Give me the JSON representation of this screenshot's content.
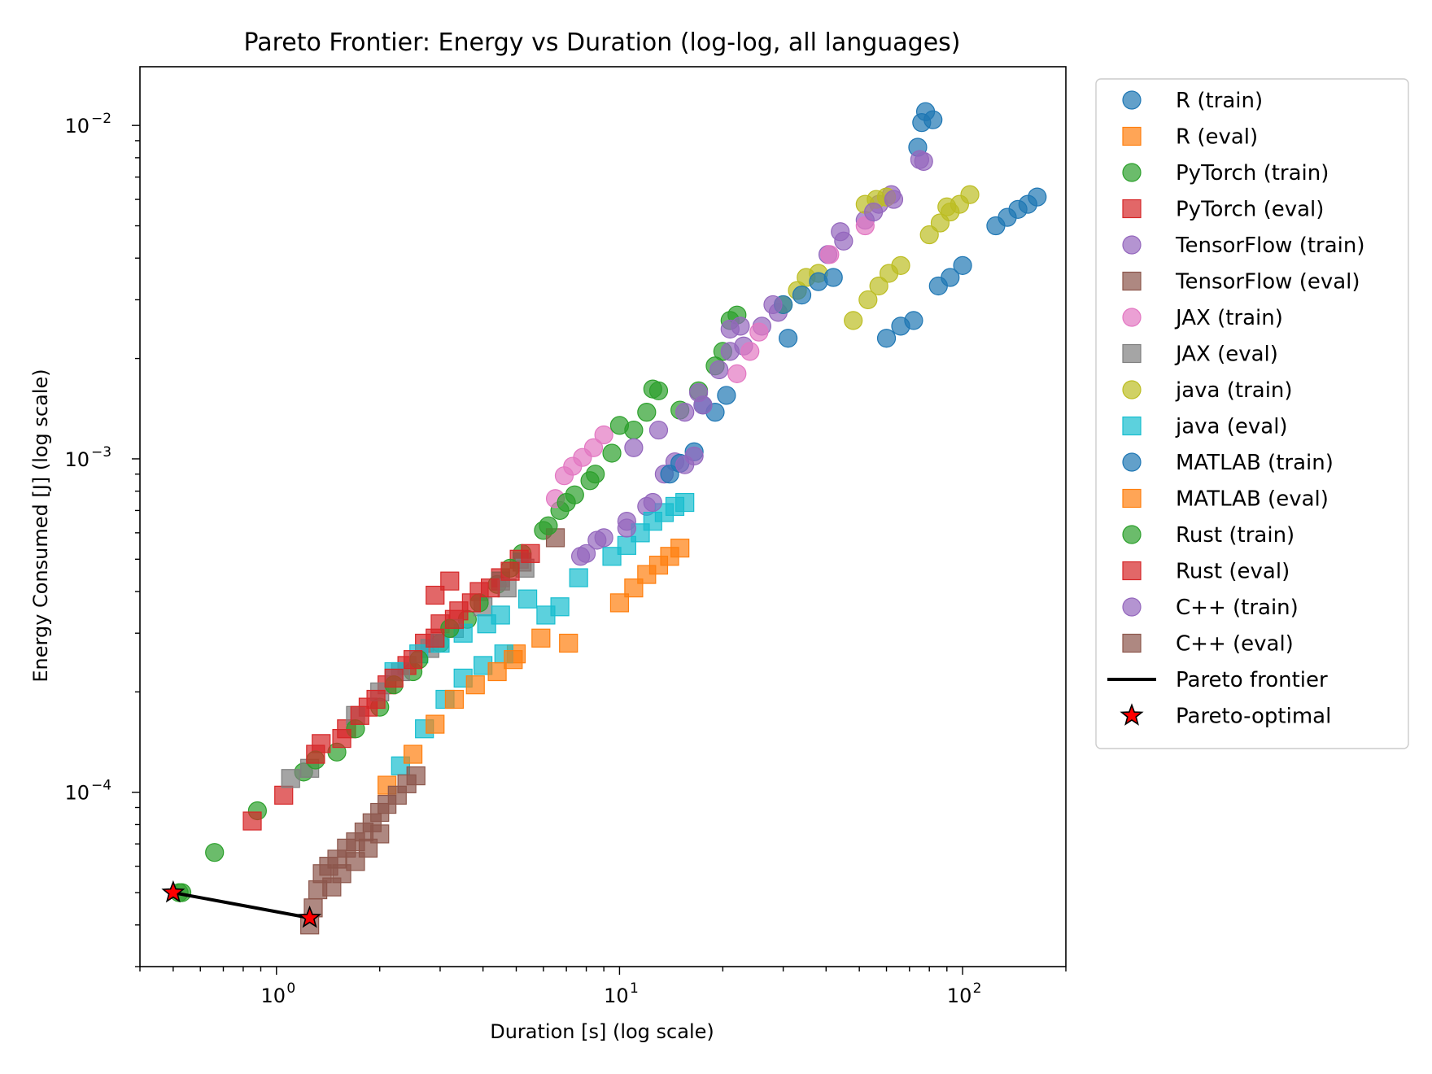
{
  "chart_data": {
    "type": "scatter",
    "title": "Pareto Frontier: Energy vs Duration (log-log, all languages)",
    "xlabel": "Duration [s] (log scale)",
    "ylabel": "Energy Consumed [J] (log scale)",
    "xscale": "log",
    "yscale": "log",
    "xlim": [
      0.4,
      200
    ],
    "ylim": [
      3e-05,
      0.015
    ],
    "x_ticks": [
      {
        "value": 1,
        "base": "10",
        "exp": "0"
      },
      {
        "value": 10,
        "base": "10",
        "exp": "1"
      },
      {
        "value": 100,
        "base": "10",
        "exp": "2"
      }
    ],
    "y_ticks": [
      {
        "value": 0.0001,
        "base": "10",
        "exp": "−4"
      },
      {
        "value": 0.001,
        "base": "10",
        "exp": "−3"
      },
      {
        "value": 0.01,
        "base": "10",
        "exp": "−2"
      }
    ],
    "grid": false,
    "legend_position": "outside-right",
    "series": [
      {
        "name": "R (train)",
        "marker": "circle",
        "color": "#1f77b4",
        "points": [
          [
            78,
            0.011
          ],
          [
            76,
            0.0102
          ],
          [
            82,
            0.0104
          ],
          [
            74,
            0.0086
          ],
          [
            20.5,
            0.00155
          ],
          [
            19,
            0.00138
          ],
          [
            17.5,
            0.00145
          ]
        ]
      },
      {
        "name": "R (eval)",
        "marker": "square",
        "color": "#ff7f0e",
        "points": [
          [
            7.1,
            0.00028
          ],
          [
            5.9,
            0.00029
          ],
          [
            5.0,
            0.00026
          ]
        ]
      },
      {
        "name": "PyTorch (train)",
        "marker": "circle",
        "color": "#2ca02c",
        "points": [
          [
            0.53,
            5e-05
          ],
          [
            0.66,
            6.6e-05
          ],
          [
            0.88,
            8.8e-05
          ],
          [
            1.2,
            0.000115
          ],
          [
            1.5,
            0.000132
          ],
          [
            2.0,
            0.00018
          ],
          [
            2.5,
            0.00023
          ],
          [
            3.0,
            0.00028
          ],
          [
            3.6,
            0.00033
          ],
          [
            4.4,
            0.00042
          ],
          [
            5.2,
            0.00052
          ],
          [
            6.0,
            0.00061
          ],
          [
            6.7,
            0.0007
          ],
          [
            7.4,
            0.00078
          ],
          [
            8.2,
            0.00086
          ],
          [
            9.5,
            0.00104
          ],
          [
            11.0,
            0.00122
          ],
          [
            12.0,
            0.00138
          ],
          [
            13.0,
            0.0016
          ],
          [
            15.0,
            0.0014
          ],
          [
            17.0,
            0.0016
          ],
          [
            19.0,
            0.0019
          ],
          [
            20.0,
            0.0021
          ],
          [
            21.0,
            0.0026
          ],
          [
            22.0,
            0.0027
          ]
        ]
      },
      {
        "name": "PyTorch (eval)",
        "marker": "square",
        "color": "#d62728",
        "points": [
          [
            0.85,
            8.2e-05
          ],
          [
            1.05,
            9.8e-05
          ],
          [
            1.35,
            0.00014
          ],
          [
            1.6,
            0.000155
          ],
          [
            1.85,
            0.00018
          ],
          [
            2.1,
            0.00021
          ],
          [
            2.4,
            0.00024
          ],
          [
            2.7,
            0.00028
          ],
          [
            3.0,
            0.00032
          ],
          [
            3.4,
            0.00035
          ],
          [
            3.9,
            0.0004
          ],
          [
            4.5,
            0.00044
          ],
          [
            5.1,
            0.0005
          ]
        ]
      },
      {
        "name": "TensorFlow (train)",
        "marker": "circle",
        "color": "#9467bd",
        "points": [
          [
            8.0,
            0.00052
          ],
          [
            9.0,
            0.00058
          ],
          [
            10.5,
            0.00065
          ],
          [
            12.0,
            0.00072
          ],
          [
            13.5,
            0.0009
          ],
          [
            14.5,
            0.00098
          ],
          [
            11.0,
            0.00108
          ],
          [
            13.0,
            0.00122
          ],
          [
            15.5,
            0.00138
          ],
          [
            17.0,
            0.00158
          ],
          [
            19.5,
            0.00185
          ],
          [
            21.0,
            0.00245
          ],
          [
            23.0,
            0.00218
          ],
          [
            26.0,
            0.0025
          ],
          [
            29.0,
            0.00275
          ],
          [
            40.5,
            0.0041
          ],
          [
            45.0,
            0.0045
          ],
          [
            52.0,
            0.0052
          ],
          [
            57.0,
            0.0058
          ],
          [
            62.0,
            0.0062
          ],
          [
            75.0,
            0.0079
          ]
        ]
      },
      {
        "name": "TensorFlow (eval)",
        "marker": "square",
        "color": "#8c564b",
        "points": [
          [
            4.5,
            0.00043
          ],
          [
            5.2,
            0.00049
          ],
          [
            6.5,
            0.00058
          ]
        ]
      },
      {
        "name": "JAX (train)",
        "marker": "circle",
        "color": "#e377c2",
        "points": [
          [
            6.5,
            0.00076
          ],
          [
            6.9,
            0.00089
          ],
          [
            7.3,
            0.00095
          ],
          [
            7.8,
            0.00101
          ],
          [
            8.4,
            0.00108
          ],
          [
            9.0,
            0.00118
          ],
          [
            22.0,
            0.0018
          ],
          [
            24.0,
            0.0021
          ],
          [
            25.5,
            0.0024
          ],
          [
            41.0,
            0.0041
          ],
          [
            52.0,
            0.005
          ]
        ]
      },
      {
        "name": "JAX (eval)",
        "marker": "square",
        "color": "#7f7f7f",
        "points": [
          [
            1.1,
            0.00011
          ],
          [
            1.25,
            0.000118
          ],
          [
            1.7,
            0.00017
          ],
          [
            2.0,
            0.0002
          ],
          [
            2.3,
            0.00023
          ],
          [
            2.8,
            0.00027
          ],
          [
            3.3,
            0.00031
          ],
          [
            4.0,
            0.00036
          ],
          [
            4.7,
            0.00041
          ],
          [
            5.3,
            0.00047
          ]
        ]
      },
      {
        "name": "java (train)",
        "marker": "circle",
        "color": "#bcbd22",
        "points": [
          [
            30,
            0.0029
          ],
          [
            33,
            0.0032
          ],
          [
            35,
            0.0035
          ],
          [
            38,
            0.0036
          ],
          [
            48,
            0.0026
          ],
          [
            53,
            0.003
          ],
          [
            57,
            0.0033
          ],
          [
            61,
            0.0036
          ],
          [
            66,
            0.0038
          ],
          [
            52,
            0.0058
          ],
          [
            56,
            0.006
          ],
          [
            60,
            0.0061
          ],
          [
            80,
            0.0047
          ],
          [
            86,
            0.0051
          ],
          [
            92,
            0.0055
          ],
          [
            98,
            0.0058
          ],
          [
            90,
            0.0057
          ],
          [
            105,
            0.0062
          ]
        ]
      },
      {
        "name": "java (eval)",
        "marker": "square",
        "color": "#17becf",
        "points": [
          [
            2.3,
            0.00012
          ],
          [
            2.7,
            0.000155
          ],
          [
            3.1,
            0.00019
          ],
          [
            3.5,
            0.00022
          ],
          [
            4.0,
            0.00024
          ],
          [
            4.6,
            0.00026
          ],
          [
            2.2,
            0.00023
          ],
          [
            2.6,
            0.00026
          ],
          [
            3.0,
            0.00028
          ],
          [
            3.5,
            0.0003
          ],
          [
            4.1,
            0.00032
          ],
          [
            4.5,
            0.00034
          ],
          [
            5.4,
            0.00038
          ],
          [
            6.1,
            0.00034
          ],
          [
            6.7,
            0.00036
          ],
          [
            7.6,
            0.00044
          ],
          [
            9.5,
            0.00051
          ],
          [
            10.5,
            0.00055
          ],
          [
            11.5,
            0.0006
          ],
          [
            12.5,
            0.00065
          ],
          [
            13.5,
            0.00069
          ],
          [
            14.5,
            0.00072
          ],
          [
            15.5,
            0.00074
          ]
        ]
      },
      {
        "name": "MATLAB (train)",
        "marker": "circle",
        "color": "#1f77b4",
        "points": [
          [
            14.0,
            0.0009
          ],
          [
            15.0,
            0.00097
          ],
          [
            16.5,
            0.00105
          ],
          [
            30.0,
            0.0029
          ],
          [
            31.0,
            0.0023
          ],
          [
            34.0,
            0.0031
          ],
          [
            38.0,
            0.0034
          ],
          [
            42.0,
            0.0035
          ],
          [
            60.0,
            0.0023
          ],
          [
            66.0,
            0.0025
          ],
          [
            72.0,
            0.0026
          ],
          [
            85.0,
            0.0033
          ],
          [
            92.0,
            0.0035
          ],
          [
            100.0,
            0.0038
          ],
          [
            125.0,
            0.005
          ],
          [
            135.0,
            0.0053
          ],
          [
            145.0,
            0.0056
          ],
          [
            155.0,
            0.0058
          ],
          [
            165.0,
            0.0061
          ]
        ]
      },
      {
        "name": "MATLAB (eval)",
        "marker": "square",
        "color": "#ff7f0e",
        "points": [
          [
            2.1,
            0.000105
          ],
          [
            2.5,
            0.00013
          ],
          [
            2.9,
            0.00016
          ],
          [
            3.3,
            0.00019
          ],
          [
            3.8,
            0.00021
          ],
          [
            4.4,
            0.00023
          ],
          [
            4.9,
            0.00025
          ],
          [
            10.0,
            0.00037
          ],
          [
            11.0,
            0.00041
          ],
          [
            12.0,
            0.00045
          ],
          [
            13.0,
            0.00048
          ],
          [
            14.0,
            0.00051
          ],
          [
            15.0,
            0.00054
          ]
        ]
      },
      {
        "name": "Rust (train)",
        "marker": "circle",
        "color": "#2ca02c",
        "points": [
          [
            0.52,
            5e-05
          ],
          [
            1.3,
            0.000125
          ],
          [
            1.7,
            0.000155
          ],
          [
            2.2,
            0.00021
          ],
          [
            2.6,
            0.00025
          ],
          [
            3.2,
            0.00031
          ],
          [
            3.9,
            0.00037
          ],
          [
            4.8,
            0.00047
          ],
          [
            6.2,
            0.00063
          ],
          [
            7.0,
            0.00074
          ],
          [
            8.5,
            0.0009
          ],
          [
            10.0,
            0.00126
          ],
          [
            12.5,
            0.00162
          ]
        ]
      },
      {
        "name": "Rust (eval)",
        "marker": "square",
        "color": "#d62728",
        "points": [
          [
            1.3,
            0.00013
          ],
          [
            1.55,
            0.000145
          ],
          [
            1.75,
            0.00017
          ],
          [
            1.95,
            0.00019
          ],
          [
            2.2,
            0.00022
          ],
          [
            2.5,
            0.00025
          ],
          [
            2.9,
            0.00029
          ],
          [
            3.3,
            0.00033
          ],
          [
            3.7,
            0.00037
          ],
          [
            4.2,
            0.00041
          ],
          [
            4.8,
            0.00046
          ],
          [
            5.5,
            0.00052
          ],
          [
            2.9,
            0.00039
          ],
          [
            3.2,
            0.00043
          ]
        ]
      },
      {
        "name": "C++ (train)",
        "marker": "circle",
        "color": "#9467bd",
        "points": [
          [
            7.7,
            0.00051
          ],
          [
            8.6,
            0.00057
          ],
          [
            10.5,
            0.00062
          ],
          [
            12.5,
            0.00074
          ],
          [
            15.5,
            0.00096
          ],
          [
            16.5,
            0.00102
          ],
          [
            17.5,
            0.00145
          ],
          [
            21.0,
            0.0021
          ],
          [
            22.5,
            0.0025
          ],
          [
            28.0,
            0.0029
          ],
          [
            44.0,
            0.0048
          ],
          [
            55.0,
            0.0055
          ],
          [
            63.0,
            0.006
          ],
          [
            77.0,
            0.0078
          ]
        ]
      },
      {
        "name": "C++ (eval)",
        "marker": "square",
        "color": "#8c564b",
        "points": [
          [
            1.25,
            4e-05
          ],
          [
            1.28,
            4.5e-05
          ],
          [
            1.32,
            5.1e-05
          ],
          [
            1.36,
            5.7e-05
          ],
          [
            1.42,
            6e-05
          ],
          [
            1.5,
            6.3e-05
          ],
          [
            1.6,
            6.8e-05
          ],
          [
            1.7,
            7.1e-05
          ],
          [
            1.8,
            7.6e-05
          ],
          [
            1.9,
            8.1e-05
          ],
          [
            2.0,
            8.7e-05
          ],
          [
            2.1,
            9.2e-05
          ],
          [
            2.25,
            9.8e-05
          ],
          [
            2.4,
            0.000106
          ],
          [
            2.55,
            0.000112
          ],
          [
            1.45,
            5.2e-05
          ],
          [
            1.55,
            5.7e-05
          ],
          [
            1.7,
            6.2e-05
          ],
          [
            1.85,
            6.8e-05
          ],
          [
            2.0,
            7.5e-05
          ]
        ]
      }
    ],
    "pareto_frontier": {
      "name": "Pareto frontier",
      "color": "#000000",
      "points": [
        [
          0.5,
          5e-05
        ],
        [
          1.25,
          4.2e-05
        ]
      ]
    },
    "pareto_optimal": {
      "name": "Pareto-optimal",
      "marker": "star",
      "color": "#ff0000",
      "points": [
        [
          0.5,
          5e-05
        ],
        [
          1.25,
          4.2e-05
        ]
      ]
    }
  }
}
